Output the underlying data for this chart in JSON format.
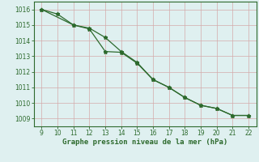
{
  "line1_x": [
    9,
    10,
    11,
    12,
    13,
    14,
    15,
    16,
    17,
    18,
    19,
    20,
    21,
    22
  ],
  "line1_y": [
    1016.0,
    1015.7,
    1015.0,
    1014.8,
    1014.2,
    1013.3,
    1012.6,
    1011.5,
    1011.0,
    1010.35,
    1009.85,
    1009.65,
    1009.2,
    1009.2
  ],
  "line2_x": [
    9,
    11,
    12,
    13,
    14,
    15,
    16,
    17,
    18,
    19,
    20,
    21,
    22
  ],
  "line2_y": [
    1016.0,
    1015.0,
    1014.75,
    1013.3,
    1013.25,
    1012.55,
    1011.5,
    1011.0,
    1010.35,
    1009.85,
    1009.65,
    1009.2,
    1009.2
  ],
  "line_color": "#2d6a2d",
  "marker": "*",
  "markersize": 3.5,
  "linewidth": 0.9,
  "xlabel": "Graphe pression niveau de la mer (hPa)",
  "xlabel_color": "#2d6a2d",
  "xlabel_fontsize": 6.5,
  "xlim": [
    8.5,
    22.5
  ],
  "ylim": [
    1008.5,
    1016.5
  ],
  "xticks": [
    9,
    10,
    11,
    12,
    13,
    14,
    15,
    16,
    17,
    18,
    19,
    20,
    21,
    22
  ],
  "yticks": [
    1009,
    1010,
    1011,
    1012,
    1013,
    1014,
    1015,
    1016
  ],
  "tick_color": "#2d6a2d",
  "tick_fontsize": 5.5,
  "grid_color_major": "#d4aaaa",
  "grid_color_minor": "#e8cccc",
  "bg_color": "#dff0f0",
  "spine_color": "#2d6a2d"
}
